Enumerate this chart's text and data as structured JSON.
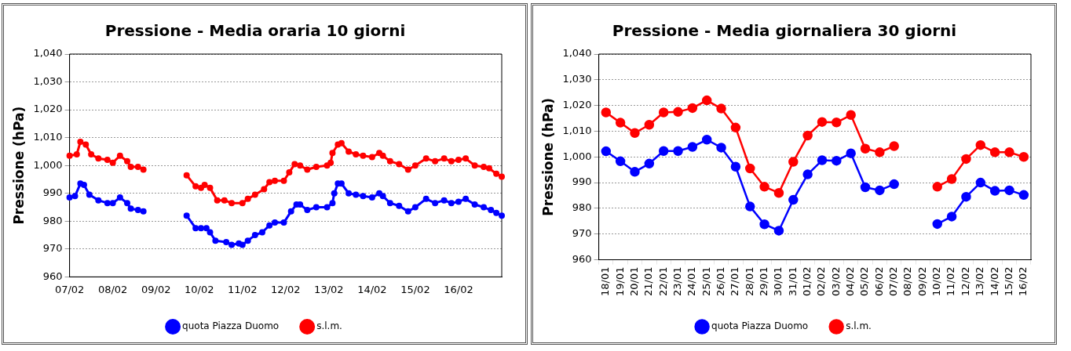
{
  "chart_data": [
    {
      "type": "line",
      "title": "Pressione - Media oraria 10 giorni",
      "ylabel": "Pressione (hPa)",
      "xlim": [
        "--02-07",
        "--02-17"
      ],
      "xticks": [
        {
          "value": "--02-07",
          "label": "07/02"
        },
        {
          "value": "--02-08",
          "label": "08/02"
        },
        {
          "value": "--02-09",
          "label": "09/02"
        },
        {
          "value": "--02-10",
          "label": "10/02"
        },
        {
          "value": "--02-11",
          "label": "11/02"
        },
        {
          "value": "--02-12",
          "label": "12/02"
        },
        {
          "value": "--02-13",
          "label": "13/02"
        },
        {
          "value": "--02-14",
          "label": "14/02"
        },
        {
          "value": "--02-15",
          "label": "15/02"
        },
        {
          "value": "--02-16",
          "label": "16/02"
        },
        {
          "value": "--02-17",
          "label": null
        }
      ],
      "ylim": [
        960,
        1040
      ],
      "yticks": [
        960,
        970,
        980,
        990,
        {
          "value": 1000,
          "label": "1,000"
        },
        {
          "value": 1010,
          "label": "1,010"
        },
        {
          "value": 1020,
          "label": "1,020"
        },
        {
          "value": 1030,
          "label": "1,030"
        },
        {
          "value": 1040,
          "label": "1,040"
        }
      ],
      "grid": "y",
      "legend": "bottom",
      "marker": "circle",
      "line_style": "solid",
      "series": [
        {
          "name": "quota Piazza Duomo",
          "color": "#0000ff",
          "x": [
            "--02-07T00:00",
            "--02-07T03:00",
            "--02-07T06:00",
            "--02-07T08:00",
            "--02-07T11:00",
            "--02-07T16:00",
            "--02-07T21:00",
            "--02-08T00:00",
            "--02-08T04:00",
            "--02-08T08:00",
            "--02-08T10:00",
            "--02-08T14:00",
            "--02-08T17:00",
            "--02-09T05:00",
            "--02-09T17:00",
            "--02-09T22:00",
            "--02-10T01:00",
            "--02-10T04:00",
            "--02-10T06:00",
            "--02-10T09:00",
            "--02-10T15:00",
            "--02-10T18:00",
            "--02-10T22:00",
            "--02-11T00:00",
            "--02-11T03:00",
            "--02-11T07:00",
            "--02-11T11:00",
            "--02-11T15:00",
            "--02-11T18:00",
            "--02-11T23:00",
            "--02-12T03:00",
            "--02-12T06:00",
            "--02-12T08:00",
            "--02-12T12:00",
            "--02-12T17:00",
            "--02-12T23:00",
            "--02-13T02:00",
            "--02-13T03:00",
            "--02-13T05:00",
            "--02-13T07:00",
            "--02-13T11:00",
            "--02-13T15:00",
            "--02-13T19:00",
            "--02-14T00:00",
            "--02-14T04:00",
            "--02-14T06:00",
            "--02-14T10:00",
            "--02-14T15:00",
            "--02-14T20:00",
            "--02-15T00:00",
            "--02-15T06:00",
            "--02-15T11:00",
            "--02-15T16:00",
            "--02-15T20:00",
            "--02-16T00:00",
            "--02-16T04:00",
            "--02-16T09:00",
            "--02-16T14:00",
            "--02-16T18:00",
            "--02-16T21:00",
            "--02-17T00:00"
          ],
          "values": [
            988.5,
            989,
            993.5,
            993,
            989.5,
            987.5,
            986.5,
            986.5,
            988.5,
            986.5,
            984.5,
            984,
            983.5,
            null,
            982,
            977.5,
            977.5,
            977.5,
            976,
            973,
            972.5,
            971.5,
            972,
            971.5,
            973,
            975,
            976,
            978.5,
            979.5,
            979.5,
            983.5,
            986,
            986,
            984,
            985,
            985,
            986.5,
            990,
            993.5,
            993.5,
            990,
            989.5,
            989,
            988.5,
            990,
            989,
            986.5,
            985.5,
            983.5,
            985,
            988,
            986.5,
            987.5,
            986.5,
            987,
            988,
            986,
            985,
            984,
            983,
            982
          ]
        },
        {
          "name": "s.l.m.",
          "color": "#ff0000",
          "x": [
            "--02-07T00:00",
            "--02-07T04:00",
            "--02-07T06:00",
            "--02-07T09:00",
            "--02-07T12:00",
            "--02-07T16:00",
            "--02-07T21:00",
            "--02-08T00:00",
            "--02-08T04:00",
            "--02-08T08:00",
            "--02-08T10:00",
            "--02-08T14:00",
            "--02-08T17:00",
            "--02-09T05:00",
            "--02-09T17:00",
            "--02-09T22:00",
            "--02-10T01:00",
            "--02-10T03:00",
            "--02-10T06:00",
            "--02-10T10:00",
            "--02-10T14:00",
            "--02-10T18:00",
            "--02-11T00:00",
            "--02-11T03:00",
            "--02-11T07:00",
            "--02-11T12:00",
            "--02-11T15:00",
            "--02-11T18:00",
            "--02-11T23:00",
            "--02-12T02:00",
            "--02-12T05:00",
            "--02-12T08:00",
            "--02-12T12:00",
            "--02-12T17:00",
            "--02-12T23:00",
            "--02-13T01:00",
            "--02-13T02:00",
            "--02-13T05:00",
            "--02-13T07:00",
            "--02-13T11:00",
            "--02-13T15:00",
            "--02-13T19:00",
            "--02-14T00:00",
            "--02-14T04:00",
            "--02-14T06:00",
            "--02-14T10:00",
            "--02-14T15:00",
            "--02-14T20:00",
            "--02-15T00:00",
            "--02-15T06:00",
            "--02-15T11:00",
            "--02-15T16:00",
            "--02-15T20:00",
            "--02-16T00:00",
            "--02-16T04:00",
            "--02-16T09:00",
            "--02-16T14:00",
            "--02-16T17:00",
            "--02-16T21:00",
            "--02-17T00:00"
          ],
          "values": [
            1003.5,
            1004,
            1008.5,
            1007.5,
            1004,
            1002.5,
            1002,
            1001,
            1003.5,
            1001.5,
            999.5,
            999.5,
            998.5,
            null,
            996.5,
            992.5,
            992,
            993,
            992,
            987.5,
            987.5,
            986.5,
            986.5,
            988,
            989.5,
            991.5,
            994,
            994.5,
            994.5,
            997.5,
            1000.5,
            1000,
            998.5,
            999.5,
            1000,
            1001,
            1004.5,
            1007.5,
            1008,
            1005,
            1004,
            1003.5,
            1003,
            1004.5,
            1003.5,
            1001.5,
            1000.5,
            998.5,
            1000,
            1002.5,
            1001.5,
            1002.5,
            1001.5,
            1002,
            1002.5,
            1000,
            999.5,
            999,
            997,
            996
          ]
        }
      ]
    },
    {
      "type": "line",
      "title": "Pressione - Media giornaliera 30 giorni",
      "ylabel": "Pressione (hPa)",
      "categories": [
        "18/01",
        "19/01",
        "20/01",
        "21/01",
        "22/01",
        "23/01",
        "24/01",
        "25/01",
        "26/01",
        "27/01",
        "28/01",
        "29/01",
        "30/01",
        "31/01",
        "01/02",
        "02/02",
        "03/02",
        "04/02",
        "05/02",
        "06/02",
        "07/02",
        "08/02",
        "09/02",
        "10/02",
        "11/02",
        "12/02",
        "13/02",
        "14/02",
        "15/02",
        "16/02"
      ],
      "ylim": [
        960,
        1040
      ],
      "yticks": [
        960,
        970,
        980,
        990,
        {
          "value": 1000,
          "label": "1,000"
        },
        {
          "value": 1010,
          "label": "1,010"
        },
        {
          "value": 1020,
          "label": "1,020"
        },
        {
          "value": 1030,
          "label": "1,030"
        },
        {
          "value": 1040,
          "label": "1,040"
        }
      ],
      "grid": "y",
      "legend": "bottom",
      "marker": "circle",
      "line_style": "solid",
      "series": [
        {
          "name": "quota Piazza Duomo",
          "color": "#0000ff",
          "values": [
            1002.2,
            998.3,
            994.2,
            997.4,
            1002.3,
            1002.3,
            1003.9,
            1006.7,
            1003.6,
            996.2,
            980.7,
            973.8,
            971.3,
            983.3,
            993.2,
            998.7,
            998.5,
            1001.4,
            988.2,
            987,
            989.4,
            null,
            null,
            973.9,
            976.8,
            984.5,
            990,
            986.8,
            987,
            985.2
          ]
        },
        {
          "name": "s.l.m.",
          "color": "#ff0000",
          "values": [
            1017.3,
            1013.3,
            1009.3,
            1012.5,
            1017.3,
            1017.5,
            1019,
            1022,
            1018.8,
            1011.4,
            995.5,
            988.4,
            986,
            998.1,
            1008.3,
            1013.6,
            1013.4,
            1016.3,
            1003.2,
            1001.8,
            1004.2,
            null,
            null,
            988.4,
            991.4,
            999.2,
            1004.6,
            1001.8,
            1001.8,
            1000
          ]
        }
      ]
    }
  ]
}
